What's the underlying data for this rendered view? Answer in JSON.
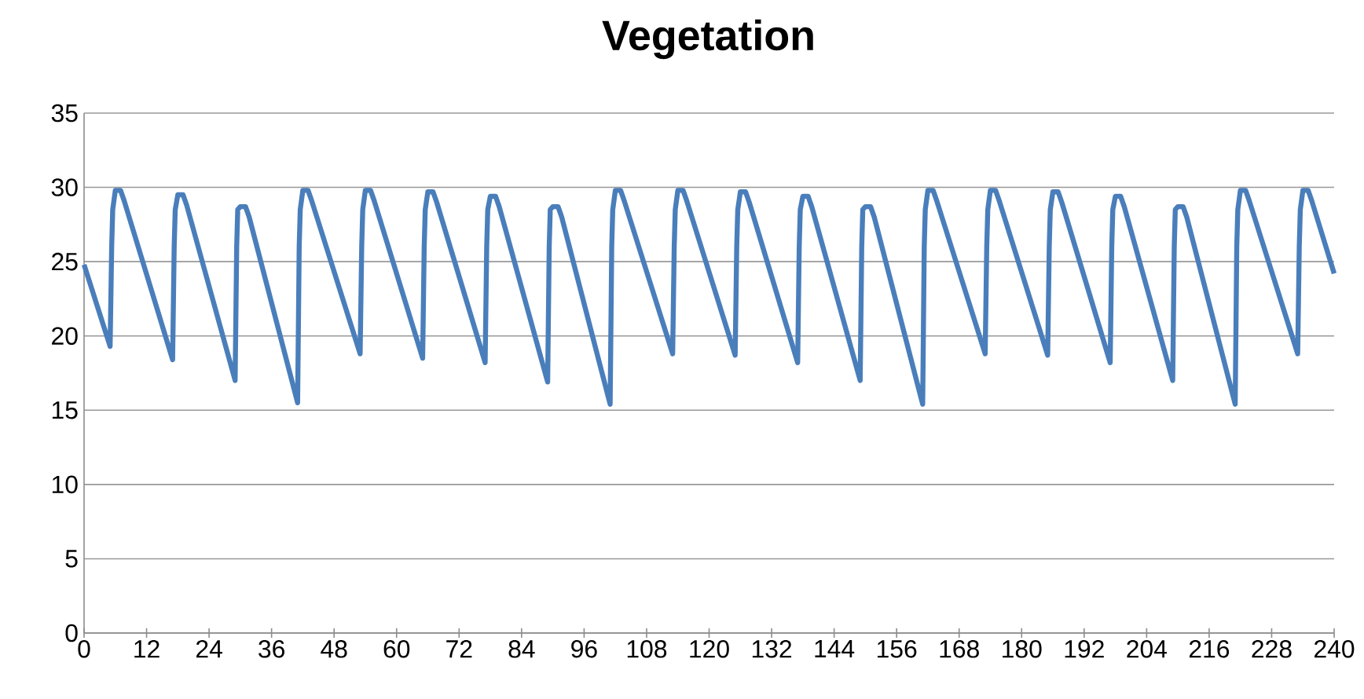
{
  "chart_data": {
    "type": "line",
    "title": "Vegetation",
    "x": [
      0,
      5,
      5.3,
      5.5,
      6,
      7,
      7.7,
      17,
      17.3,
      17.5,
      18,
      19,
      19.7,
      29,
      29.3,
      29.5,
      30,
      31,
      31.7,
      41,
      41.3,
      41.5,
      42,
      43,
      43.7,
      53,
      53.3,
      53.5,
      54,
      55,
      55.7,
      65,
      65.3,
      65.5,
      66,
      67,
      67.7,
      77,
      77.3,
      77.5,
      78,
      79,
      79.7,
      89,
      89.3,
      89.5,
      90,
      91,
      91.7,
      101,
      101.3,
      101.5,
      102,
      103,
      103.7,
      113,
      113.3,
      113.5,
      114,
      115,
      115.7,
      125,
      125.3,
      125.5,
      126,
      127,
      127.7,
      137,
      137.3,
      137.5,
      138,
      139,
      139.7,
      149,
      149.3,
      149.5,
      150,
      151,
      151.7,
      161,
      161.3,
      161.5,
      162,
      163,
      163.7,
      173,
      173.3,
      173.5,
      174,
      175,
      175.7,
      185,
      185.3,
      185.5,
      186,
      187,
      187.7,
      197,
      197.3,
      197.5,
      198,
      199,
      199.7,
      209,
      209.3,
      209.5,
      210,
      211,
      211.7,
      221,
      221.3,
      221.5,
      222,
      223,
      223.7,
      233,
      233.3,
      233.5,
      234,
      235,
      235.7,
      240
    ],
    "series": [
      {
        "color": "#4a7ebb",
        "values": [
          24.8,
          19.3,
          26,
          28.5,
          29.8,
          29.8,
          29.1,
          18.4,
          26,
          28.5,
          29.5,
          29.5,
          28.8,
          17.0,
          26,
          28.5,
          28.7,
          28.7,
          28.0,
          15.5,
          26,
          28.5,
          29.8,
          29.8,
          29.1,
          18.8,
          26,
          28.5,
          29.8,
          29.8,
          29.1,
          18.5,
          26,
          28.5,
          29.7,
          29.7,
          29.0,
          18.2,
          26,
          28.5,
          29.4,
          29.4,
          28.7,
          16.9,
          26,
          28.5,
          28.7,
          28.7,
          28.0,
          15.4,
          26,
          28.5,
          29.8,
          29.8,
          29.1,
          18.8,
          26,
          28.5,
          29.8,
          29.8,
          29.1,
          18.7,
          26,
          28.5,
          29.7,
          29.7,
          29.0,
          18.2,
          26,
          28.5,
          29.4,
          29.4,
          28.7,
          17.0,
          26,
          28.5,
          28.7,
          28.7,
          28.0,
          15.4,
          26,
          28.5,
          29.8,
          29.8,
          29.1,
          18.8,
          26,
          28.5,
          29.8,
          29.8,
          29.1,
          18.7,
          26,
          28.5,
          29.7,
          29.7,
          29.0,
          18.2,
          26,
          28.5,
          29.4,
          29.4,
          28.7,
          17.0,
          26,
          28.5,
          28.7,
          28.7,
          28.0,
          15.4,
          26,
          28.5,
          29.8,
          29.8,
          29.1,
          18.8,
          26,
          28.5,
          29.8,
          29.8,
          29.1,
          24.2
        ]
      }
    ],
    "xlim": [
      0,
      240
    ],
    "xticks": [
      0,
      12,
      24,
      36,
      48,
      60,
      72,
      84,
      96,
      108,
      120,
      132,
      144,
      156,
      168,
      180,
      192,
      204,
      216,
      228,
      240
    ],
    "ylim": [
      0,
      35
    ],
    "yticks": [
      0,
      5,
      10,
      15,
      20,
      25,
      30,
      35
    ],
    "grid": "y",
    "legend": false,
    "marker": "none",
    "line_style": "solid"
  }
}
